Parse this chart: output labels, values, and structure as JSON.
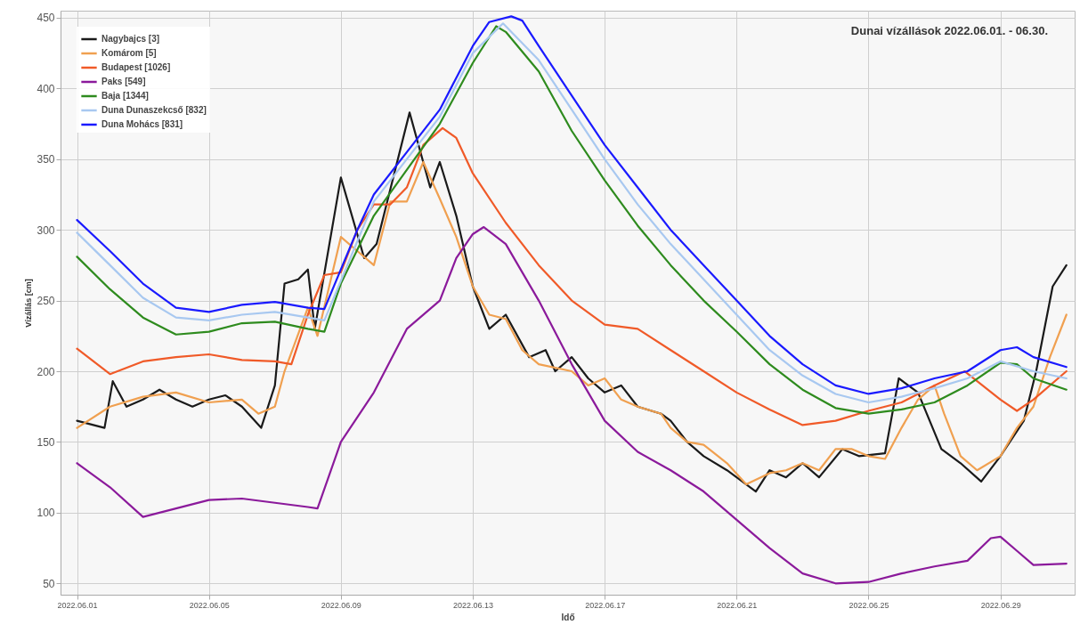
{
  "chart_data": {
    "type": "line",
    "title": "Dunai vízállások 2022.06.01. - 06.30.",
    "xlabel": "Idő",
    "ylabel": "Vízállás [cm]",
    "grid": true,
    "legend": "top left",
    "line_style": "solid",
    "marker": "none",
    "xlim": [
      "2022-05-31T12:00",
      "2022-07-01T06:00"
    ],
    "ylim": [
      42,
      455
    ],
    "yticks": [
      50,
      100,
      150,
      200,
      250,
      300,
      350,
      400,
      450
    ],
    "xticks": [
      {
        "value": "2022-06-01",
        "label": "2022.06.01"
      },
      {
        "value": "2022-06-05",
        "label": "2022.06.05"
      },
      {
        "value": "2022-06-09",
        "label": "2022.06.09"
      },
      {
        "value": "2022-06-13",
        "label": "2022.06.13"
      },
      {
        "value": "2022-06-17",
        "label": "2022.06.17"
      },
      {
        "value": "2022-06-21",
        "label": "2022.06.21"
      },
      {
        "value": "2022-06-25",
        "label": "2022.06.25"
      },
      {
        "value": "2022-06-29",
        "label": "2022.06.29"
      }
    ],
    "series": [
      {
        "name": "Nagybajcs [3]",
        "color": "#1a1a1a",
        "x": [
          "2022-06-01",
          "2022-06-01T20:00",
          "2022-06-02T02:00",
          "2022-06-02T12:00",
          "2022-06-03",
          "2022-06-03T12:00",
          "2022-06-04",
          "2022-06-04T12:00",
          "2022-06-05",
          "2022-06-05T12:00",
          "2022-06-06",
          "2022-06-06T14:00",
          "2022-06-07",
          "2022-06-07T07:00",
          "2022-06-07T17:00",
          "2022-06-08",
          "2022-06-08T05:00",
          "2022-06-09",
          "2022-06-09T17:00",
          "2022-06-10T02:00",
          "2022-06-11T02:00",
          "2022-06-11T17:00",
          "2022-06-12",
          "2022-06-12T12:00",
          "2022-06-13",
          "2022-06-13T12:00",
          "2022-06-14",
          "2022-06-14T17:00",
          "2022-06-15T05:00",
          "2022-06-15T12:00",
          "2022-06-16",
          "2022-06-16T12:00",
          "2022-06-17",
          "2022-06-17T12:00",
          "2022-06-18",
          "2022-06-18T17:00",
          "2022-06-19",
          "2022-06-19T12:00",
          "2022-06-20",
          "2022-06-20T17:00",
          "2022-06-21T14:00",
          "2022-06-22",
          "2022-06-22T12:00",
          "2022-06-23",
          "2022-06-23T12:00",
          "2022-06-24T05:00",
          "2022-06-24T17:00",
          "2022-06-25T12:00",
          "2022-06-25T22:00",
          "2022-06-26T12:00",
          "2022-06-27T05:00",
          "2022-06-27T19:00",
          "2022-06-28T10:00",
          "2022-06-29",
          "2022-06-29T17:00",
          "2022-06-30T02:00",
          "2022-06-30T14:00",
          "2022-07-01"
        ],
        "values": [
          165,
          160,
          193,
          175,
          180,
          187,
          180,
          175,
          180,
          183,
          175,
          160,
          190,
          262,
          265,
          272,
          230,
          337,
          280,
          290,
          383,
          330,
          348,
          310,
          260,
          230,
          240,
          210,
          215,
          200,
          210,
          195,
          185,
          190,
          175,
          170,
          165,
          150,
          140,
          130,
          115,
          130,
          125,
          135,
          125,
          145,
          140,
          142,
          195,
          185,
          145,
          135,
          122,
          140,
          165,
          200,
          260,
          275
        ]
      },
      {
        "name": "Komárom [5]",
        "color": "#f0a050",
        "x": [
          "2022-06-01",
          "2022-06-02",
          "2022-06-03",
          "2022-06-04",
          "2022-06-05",
          "2022-06-06",
          "2022-06-06T12:00",
          "2022-06-07",
          "2022-06-07T07:00",
          "2022-06-08",
          "2022-06-08T07:00",
          "2022-06-09",
          "2022-06-09T12:00",
          "2022-06-10",
          "2022-06-10T12:00",
          "2022-06-11",
          "2022-06-11T12:00",
          "2022-06-12",
          "2022-06-12T12:00",
          "2022-06-13",
          "2022-06-13T12:00",
          "2022-06-14",
          "2022-06-14T12:00",
          "2022-06-15",
          "2022-06-16",
          "2022-06-16T12:00",
          "2022-06-17",
          "2022-06-17T12:00",
          "2022-06-18",
          "2022-06-18T17:00",
          "2022-06-19",
          "2022-06-19T12:00",
          "2022-06-20",
          "2022-06-20T17:00",
          "2022-06-21T07:00",
          "2022-06-22",
          "2022-06-22T12:00",
          "2022-06-23",
          "2022-06-23T12:00",
          "2022-06-24",
          "2022-06-24T12:00",
          "2022-06-25",
          "2022-06-25T12:00",
          "2022-06-26",
          "2022-06-26T12:00",
          "2022-06-27",
          "2022-06-27T07:00",
          "2022-06-27T19:00",
          "2022-06-28T07:00",
          "2022-06-29",
          "2022-06-29T12:00",
          "2022-06-30",
          "2022-06-30T12:00",
          "2022-07-01"
        ],
        "values": [
          160,
          175,
          182,
          185,
          178,
          180,
          170,
          175,
          200,
          245,
          225,
          295,
          285,
          275,
          320,
          320,
          348,
          322,
          295,
          260,
          240,
          237,
          215,
          205,
          200,
          190,
          195,
          180,
          175,
          170,
          160,
          150,
          148,
          135,
          120,
          128,
          130,
          135,
          130,
          145,
          145,
          140,
          138,
          160,
          180,
          190,
          170,
          140,
          130,
          140,
          160,
          175,
          210,
          240
        ]
      },
      {
        "name": "Budapest [1026]",
        "color": "#f05a28",
        "x": [
          "2022-06-01",
          "2022-06-02",
          "2022-06-03",
          "2022-06-04",
          "2022-06-05",
          "2022-06-06",
          "2022-06-07",
          "2022-06-07T12:00",
          "2022-06-08",
          "2022-06-08T12:00",
          "2022-06-09",
          "2022-06-09T12:00",
          "2022-06-10",
          "2022-06-10T12:00",
          "2022-06-11",
          "2022-06-11T12:00",
          "2022-06-12T02:00",
          "2022-06-12T12:00",
          "2022-06-13",
          "2022-06-14",
          "2022-06-15",
          "2022-06-16",
          "2022-06-17",
          "2022-06-18",
          "2022-06-19",
          "2022-06-20",
          "2022-06-21",
          "2022-06-22",
          "2022-06-23",
          "2022-06-24",
          "2022-06-25",
          "2022-06-26",
          "2022-06-27",
          "2022-06-27T22:00",
          "2022-06-29",
          "2022-06-29T12:00",
          "2022-06-30",
          "2022-07-01"
        ],
        "values": [
          216,
          198,
          207,
          210,
          212,
          208,
          207,
          205,
          240,
          268,
          270,
          300,
          318,
          318,
          330,
          360,
          372,
          365,
          340,
          305,
          275,
          250,
          233,
          230,
          215,
          200,
          185,
          173,
          162,
          165,
          172,
          178,
          190,
          200,
          180,
          172,
          180,
          200
        ]
      },
      {
        "name": "Paks [549]",
        "color": "#8b1a9b",
        "x": [
          "2022-06-01",
          "2022-06-02",
          "2022-06-03",
          "2022-06-04",
          "2022-06-05",
          "2022-06-06",
          "2022-06-07",
          "2022-06-08",
          "2022-06-08T07:00",
          "2022-06-09",
          "2022-06-10",
          "2022-06-11",
          "2022-06-12",
          "2022-06-12T12:00",
          "2022-06-13",
          "2022-06-13T08:00",
          "2022-06-14",
          "2022-06-15",
          "2022-06-16",
          "2022-06-17",
          "2022-06-18",
          "2022-06-19",
          "2022-06-20",
          "2022-06-21",
          "2022-06-22",
          "2022-06-23",
          "2022-06-24",
          "2022-06-25",
          "2022-06-26",
          "2022-06-27",
          "2022-06-28",
          "2022-06-28T17:00",
          "2022-06-29",
          "2022-06-29T12:00",
          "2022-06-30",
          "2022-07-01"
        ],
        "values": [
          135,
          118,
          97,
          103,
          109,
          110,
          107,
          104,
          103,
          150,
          185,
          230,
          250,
          280,
          297,
          302,
          290,
          250,
          205,
          165,
          143,
          130,
          115,
          95,
          75,
          57,
          50,
          51,
          57,
          62,
          66,
          82,
          83,
          73,
          63,
          64
        ]
      },
      {
        "name": "Baja [1344]",
        "color": "#2e8b1e",
        "x": [
          "2022-06-01",
          "2022-06-02",
          "2022-06-03",
          "2022-06-04",
          "2022-06-05",
          "2022-06-06",
          "2022-06-07",
          "2022-06-08",
          "2022-06-08T12:00",
          "2022-06-09",
          "2022-06-10",
          "2022-06-12",
          "2022-06-13",
          "2022-06-13T17:00",
          "2022-06-14",
          "2022-06-15",
          "2022-06-16",
          "2022-06-17",
          "2022-06-18",
          "2022-06-19",
          "2022-06-20",
          "2022-06-21",
          "2022-06-22",
          "2022-06-23",
          "2022-06-24",
          "2022-06-25",
          "2022-06-26",
          "2022-06-27",
          "2022-06-28",
          "2022-06-29",
          "2022-06-29T12:00",
          "2022-06-30",
          "2022-07-01"
        ],
        "values": [
          281,
          258,
          238,
          226,
          228,
          234,
          235,
          230,
          228,
          262,
          310,
          375,
          418,
          444,
          440,
          412,
          370,
          335,
          303,
          275,
          250,
          228,
          205,
          187,
          174,
          170,
          173,
          178,
          190,
          206,
          205,
          195,
          187
        ]
      },
      {
        "name": "Duna Dunaszekcső [832]",
        "color": "#a8c8f0",
        "x": [
          "2022-06-01",
          "2022-06-02",
          "2022-06-03",
          "2022-06-04",
          "2022-06-05",
          "2022-06-06",
          "2022-06-07",
          "2022-06-08",
          "2022-06-08T12:00",
          "2022-06-10",
          "2022-06-12",
          "2022-06-13",
          "2022-06-13T22:00",
          "2022-06-15",
          "2022-06-16",
          "2022-06-17",
          "2022-06-18",
          "2022-06-19",
          "2022-06-20",
          "2022-06-21",
          "2022-06-22",
          "2022-06-23",
          "2022-06-24",
          "2022-06-25",
          "2022-06-26",
          "2022-06-27",
          "2022-06-28",
          "2022-06-29",
          "2022-06-30",
          "2022-07-01"
        ],
        "values": [
          298,
          275,
          252,
          238,
          236,
          240,
          242,
          238,
          236,
          320,
          380,
          425,
          446,
          420,
          385,
          350,
          318,
          290,
          265,
          240,
          215,
          197,
          184,
          178,
          182,
          188,
          195,
          207,
          200,
          195
        ]
      },
      {
        "name": "Duna Mohács [831]",
        "color": "#1a1aff",
        "x": [
          "2022-06-01",
          "2022-06-02",
          "2022-06-03",
          "2022-06-04",
          "2022-06-05",
          "2022-06-06",
          "2022-06-07",
          "2022-06-08",
          "2022-06-08T12:00",
          "2022-06-09T12:00",
          "2022-06-10",
          "2022-06-11",
          "2022-06-12",
          "2022-06-13",
          "2022-06-13T12:00",
          "2022-06-14T04:00",
          "2022-06-14T12:00",
          "2022-06-15",
          "2022-06-16",
          "2022-06-17",
          "2022-06-18",
          "2022-06-19",
          "2022-06-20",
          "2022-06-21",
          "2022-06-22",
          "2022-06-23",
          "2022-06-24",
          "2022-06-25",
          "2022-06-26",
          "2022-06-27",
          "2022-06-28",
          "2022-06-29",
          "2022-06-29T12:00",
          "2022-06-30",
          "2022-07-01"
        ],
        "values": [
          307,
          285,
          262,
          245,
          242,
          247,
          249,
          245,
          244,
          300,
          325,
          355,
          385,
          430,
          447,
          451,
          448,
          430,
          395,
          360,
          330,
          300,
          275,
          250,
          225,
          205,
          190,
          184,
          188,
          195,
          200,
          215,
          217,
          210,
          203
        ]
      }
    ]
  }
}
